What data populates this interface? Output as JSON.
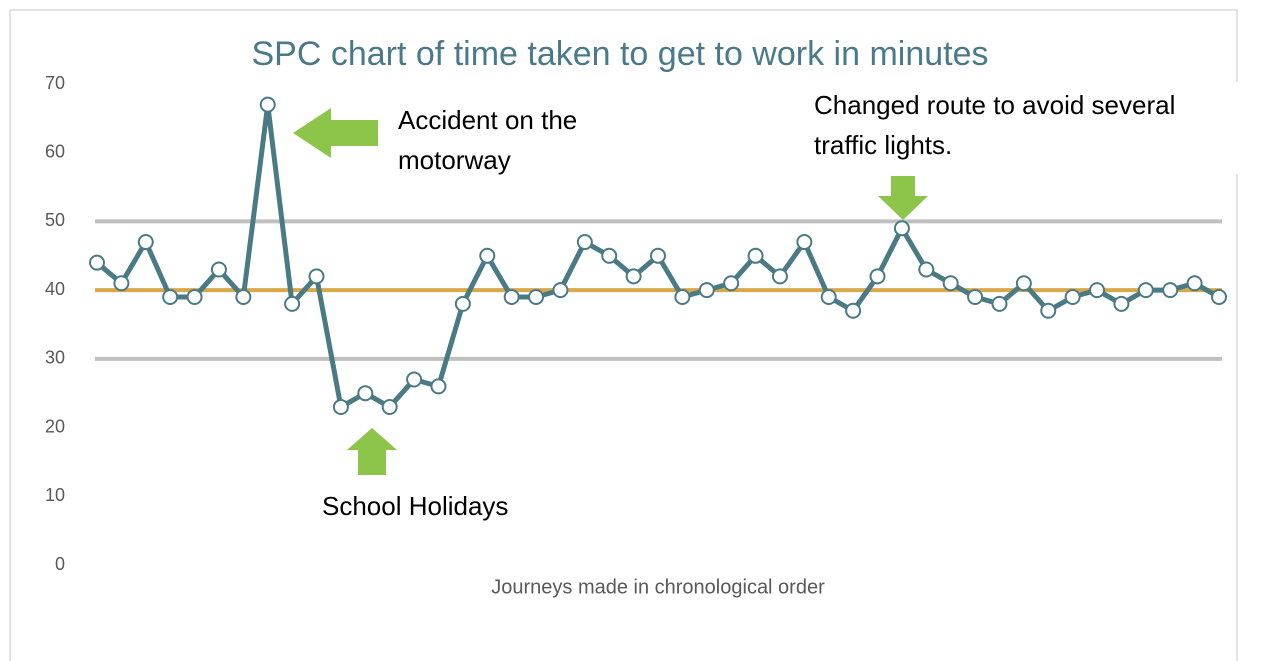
{
  "chart_data": {
    "type": "line",
    "title": "SPC chart of time taken to get to work in minutes",
    "x_label": "Journeys made in chronological order",
    "series": [
      {
        "color": "#4a7a84",
        "values": [
          44,
          41,
          47,
          39,
          39,
          43,
          39,
          67,
          38,
          42,
          23,
          25,
          23,
          27,
          26,
          38,
          45,
          39,
          39,
          40,
          47,
          45,
          42,
          45,
          39,
          40,
          41,
          45,
          42,
          47,
          39,
          37,
          42,
          49,
          43,
          41,
          39,
          38,
          41,
          37,
          39,
          40,
          38,
          40,
          40,
          41,
          39
        ]
      }
    ],
    "control_lines": [
      {
        "value": 50,
        "color": "#c0c0c0"
      },
      {
        "value": 30,
        "color": "#c0c0c0"
      },
      {
        "value": 40,
        "color": "#d9a84a"
      }
    ],
    "ylim": [
      0,
      70
    ],
    "yticks": [
      0,
      10,
      20,
      30,
      40,
      50,
      60,
      70
    ],
    "annotations": [
      {
        "lines": [
          "Accident on the",
          "motorway"
        ]
      },
      {
        "lines": [
          "School Holidays"
        ]
      },
      {
        "lines": [
          "Changed route to avoid several",
          "traffic lights."
        ]
      }
    ]
  }
}
